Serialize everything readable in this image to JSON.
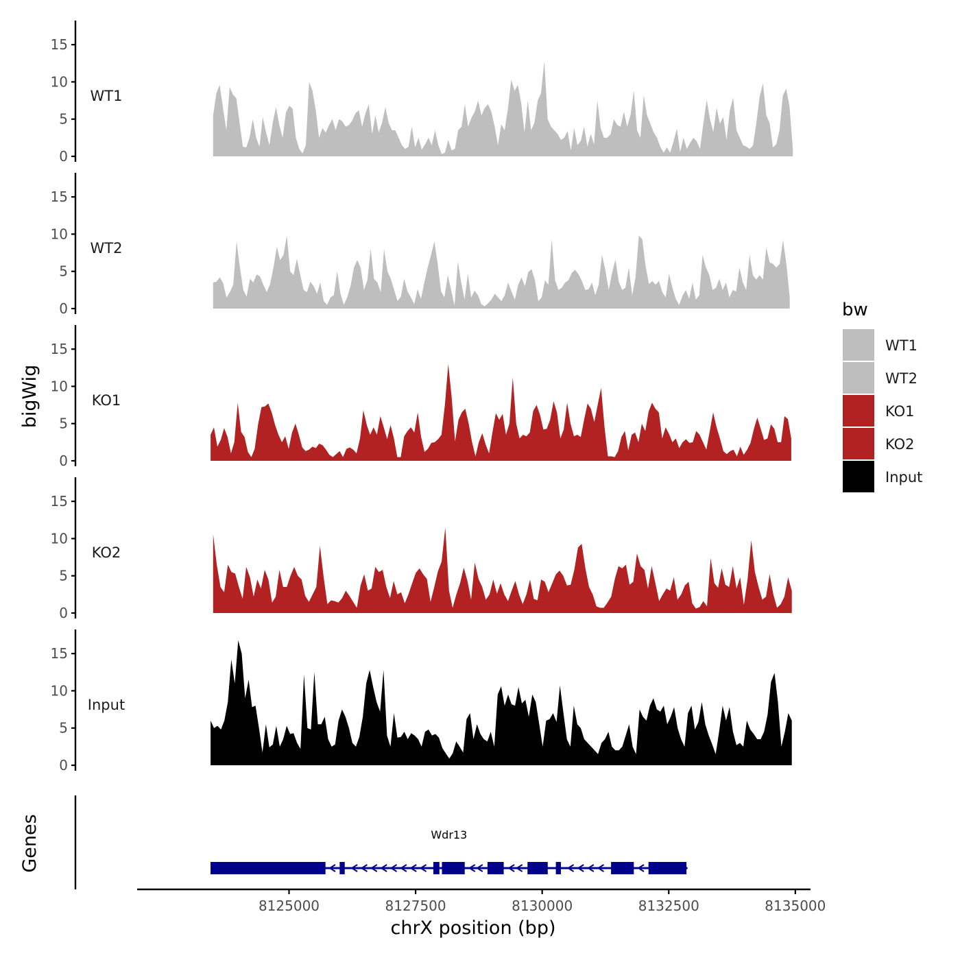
{
  "chart_data": {
    "type": "area",
    "title": "",
    "ylabel": "bigWig",
    "xlabel": "chrX position (bp)",
    "xlim": [
      8122000,
      8135300
    ],
    "x_ticks": [
      8125000,
      8127500,
      8130000,
      8132500,
      8135000
    ],
    "x_tick_labels": [
      "8125000",
      "8127500",
      "8130000",
      "8132500",
      "8135000"
    ],
    "ylim": [
      0,
      17.5
    ],
    "y_ticks": [
      0,
      5,
      10,
      15
    ],
    "y_tick_labels": [
      "0",
      "5",
      "10",
      "15"
    ],
    "genes_label": "Genes",
    "legend": {
      "title": "bw",
      "placement": "right",
      "entries": [
        {
          "name": "WT1",
          "color": "#bebebe"
        },
        {
          "name": "WT2",
          "color": "#bebebe"
        },
        {
          "name": "KO1",
          "color": "#b22222"
        },
        {
          "name": "KO2",
          "color": "#b22222"
        },
        {
          "name": "Input",
          "color": "#000000"
        }
      ]
    },
    "series": [
      {
        "name": "WT1",
        "color": "#bebebe",
        "x_start": 8123500,
        "x_end": 8134950,
        "values": [
          5.5,
          8.5,
          9.6,
          6.5,
          3.5,
          9.3,
          8.3,
          7.8,
          4.5,
          1.3,
          1.2,
          2.5,
          5,
          2.5,
          1.3,
          5.3,
          3.2,
          1.5,
          4.5,
          6.6,
          4.2,
          2.5,
          5.9,
          6.8,
          6.4,
          2.5,
          1,
          0.4,
          1.5,
          10,
          8.8,
          6.2,
          2.5,
          3.8,
          3.2,
          4.2,
          5,
          3.5,
          5,
          4.7,
          4,
          4.2,
          4.8,
          5.8,
          6.2,
          4,
          5.8,
          7,
          3,
          5.5,
          3.2,
          4.5,
          6.6,
          4.5,
          3.5,
          3.5,
          2.5,
          1.5,
          1,
          1.3,
          4,
          1.2,
          2.5,
          0.9,
          1.6,
          2.5,
          1.5,
          3.5,
          1.5,
          0.3,
          0.5,
          2.2,
          0.8,
          1,
          3.5,
          4,
          7,
          4,
          5.2,
          6,
          7.5,
          5.5,
          6.5,
          7,
          6,
          4,
          1.5,
          4.3,
          3.5,
          6.4,
          10.3,
          8.8,
          9.6,
          7.2,
          3.2,
          7.5,
          3.5,
          4.5,
          7.5,
          8.5,
          12.8,
          5,
          4,
          3.5,
          3,
          2.2,
          2.5,
          3.4,
          0.8,
          3.8,
          1.5,
          2.1,
          4,
          1.3,
          3,
          1.6,
          7.5,
          3.8,
          2.5,
          2.5,
          3,
          5,
          4.2,
          4,
          6,
          4,
          5.5,
          8.8,
          3.5,
          2.5,
          8.2,
          5.5,
          4.4,
          3.2,
          2.5,
          1.3,
          0.5,
          1.2,
          0.5,
          2,
          3.7,
          0.6,
          2.5,
          1,
          1.8,
          2.5,
          2,
          1,
          4.4,
          7.6,
          5,
          3.3,
          6.5,
          4.4,
          5.3,
          2.2,
          6.2,
          7.9,
          3.5,
          2.5,
          1.5,
          1.3,
          1,
          1.5,
          4.5,
          8,
          9.8,
          5.5,
          4.5,
          1.2,
          1.6,
          3.5,
          8.2,
          9.1,
          6.8,
          1
        ]
      },
      {
        "name": "WT2",
        "color": "#bebebe",
        "x_start": 8123500,
        "x_end": 8134890,
        "values": [
          3.5,
          3.6,
          4.2,
          3.4,
          1.5,
          2.2,
          3.2,
          9,
          5.5,
          2.5,
          1.6,
          4,
          3.5,
          4.6,
          4.3,
          3.2,
          2.2,
          3.3,
          5.5,
          8.3,
          6.5,
          7.2,
          9.8,
          5,
          4.5,
          6.7,
          4.5,
          2.5,
          2.2,
          3.6,
          3,
          2,
          3.5,
          1,
          0.5,
          1.5,
          1.8,
          5,
          2,
          0.5,
          1.5,
          3,
          5.5,
          6.5,
          5.5,
          2.5,
          3.8,
          8,
          4,
          3.5,
          2.2,
          8,
          5,
          4,
          2.5,
          1,
          1.6,
          4,
          2.3,
          1.5,
          0.6,
          2.6,
          1.3,
          3.5,
          5.5,
          7.2,
          9,
          6,
          2.3,
          1.5,
          4.5,
          2.5,
          0.4,
          6.3,
          3.5,
          1.2,
          4.7,
          1.5,
          2.4,
          1.8,
          0.6,
          0.3,
          0.7,
          1.2,
          2,
          1.5,
          1,
          1.8,
          3.5,
          2.3,
          1.2,
          3.2,
          4.2,
          3,
          4.9,
          5.3,
          3.8,
          1,
          1.5,
          3.8,
          3.2,
          9.3,
          3.8,
          2.5,
          2.8,
          3.5,
          3.8,
          4.8,
          5.2,
          4.6,
          3.7,
          2.5,
          2.6,
          3.5,
          1.8,
          3.2,
          7.2,
          5.2,
          2.5,
          4.8,
          6.6,
          3.6,
          2.5,
          2.8,
          5.5,
          1.8,
          4.2,
          9.8,
          9.3,
          5.7,
          3.3,
          3.7,
          3.2,
          3.7,
          2.2,
          1.5,
          4.7,
          2.8,
          1.3,
          0.5,
          1.7,
          2.5,
          1.3,
          3.5,
          1.2,
          1.8,
          7.2,
          5.5,
          4.5,
          2.5,
          2.8,
          4,
          2.5,
          3.5,
          1.5,
          2.5,
          2.3,
          5.5,
          3.5,
          2.5,
          7.2,
          4.5,
          3.9,
          4.5,
          3.9,
          8.2,
          6.2,
          6,
          5.5,
          6,
          9.2,
          6,
          1.5
        ]
      },
      {
        "name": "KO1",
        "color": "#b22222",
        "x_start": 8123450,
        "x_end": 8134920,
        "values": [
          3.5,
          4.5,
          1.9,
          2.8,
          4.4,
          3.2,
          1,
          2.5,
          7.8,
          3.9,
          3.2,
          1.2,
          0.5,
          1.6,
          4.9,
          7.2,
          7.3,
          7.7,
          6.5,
          4.8,
          3.5,
          2.5,
          3.3,
          1.6,
          3.8,
          5,
          3.5,
          1.8,
          1.3,
          1.5,
          1.9,
          1.7,
          2.3,
          2.1,
          1.5,
          0.8,
          0.5,
          0.9,
          1.3,
          0.5,
          1.6,
          1.8,
          1.5,
          1,
          3,
          6.8,
          4.8,
          3.5,
          4.5,
          3.5,
          6,
          4.5,
          2.9,
          4.8,
          3,
          0.5,
          0.5,
          3.3,
          4,
          4.5,
          3.8,
          6.5,
          3.2,
          1.2,
          1.6,
          2.4,
          2.5,
          2.9,
          3.5,
          7.5,
          13,
          8.5,
          2.6,
          5.5,
          6.5,
          7,
          5,
          2.5,
          0.6,
          2.5,
          3.7,
          2.2,
          1,
          3.8,
          6.4,
          5.5,
          6.3,
          3.5,
          5,
          11.2,
          5,
          3,
          3.5,
          3.3,
          3.8,
          6.7,
          7.5,
          6.2,
          4.2,
          4.3,
          5.5,
          8,
          6.5,
          3,
          4.2,
          7.8,
          5,
          3.3,
          3.5,
          3.2,
          5.5,
          7.7,
          7,
          5.2,
          7.5,
          9.8,
          4.5,
          0.6,
          0.6,
          0.5,
          1.3,
          3.2,
          4,
          1.4,
          3.5,
          3.8,
          2.5,
          5,
          4,
          6.6,
          7.8,
          7,
          6.5,
          3,
          4.5,
          3.6,
          2.5,
          3,
          1.7,
          2.5,
          2.9,
          2.4,
          2.5,
          4,
          3.5,
          2.5,
          1.5,
          4,
          6.5,
          4.5,
          3,
          1.3,
          0.9,
          1.3,
          1.5,
          0.6,
          1.9,
          0.8,
          1.5,
          2.4,
          4.3,
          5.8,
          4.3,
          2.8,
          3,
          4.9,
          4.3,
          2.5,
          2.5,
          6,
          5.6,
          3
        ]
      },
      {
        "name": "KO2",
        "color": "#b22222",
        "x_start": 8123500,
        "x_end": 8134930,
        "values": [
          10.6,
          6.5,
          3.5,
          2.8,
          6.5,
          5.5,
          5.3,
          3.5,
          1.9,
          6.2,
          4.8,
          2.2,
          4.5,
          3.3,
          5.8,
          4.5,
          1.4,
          2.2,
          5.8,
          3.5,
          3.5,
          5,
          6.2,
          5,
          4.5,
          2.3,
          1.5,
          2.5,
          3.5,
          9,
          4.8,
          1.2,
          1.7,
          1.6,
          1.4,
          2,
          3,
          2.3,
          1.5,
          0.7,
          3.7,
          5.2,
          3,
          3.3,
          6.2,
          5.5,
          5.8,
          3.5,
          2,
          4.3,
          2.5,
          2.8,
          1.3,
          2.5,
          4,
          5.4,
          6,
          5.2,
          4.6,
          1.5,
          3.5,
          5.6,
          6.9,
          11.5,
          3,
          0.7,
          2.5,
          4,
          6.1,
          4.3,
          1.8,
          6.8,
          4.6,
          3.5,
          1.8,
          2.5,
          4.5,
          2.6,
          4,
          2.5,
          1.6,
          3,
          4.3,
          2.5,
          1.2,
          2.5,
          4.5,
          1.9,
          1.7,
          4.5,
          4.2,
          2.8,
          4,
          5.2,
          5.7,
          5,
          3.7,
          3.8,
          5.8,
          8.8,
          9.3,
          6,
          3.5,
          2.5,
          0.9,
          0.7,
          0.7,
          1.4,
          2.2,
          4.6,
          6.3,
          6,
          6.5,
          3.8,
          4.2,
          8,
          6.3,
          5.8,
          3.3,
          6.3,
          4,
          1.6,
          2.5,
          3.3,
          3,
          4.8,
          1.8,
          2.5,
          3.7,
          4.2,
          1.3,
          0.6,
          0.8,
          1.6,
          0.9,
          7.4,
          4,
          3.4,
          6,
          3.8,
          3.5,
          6.3,
          3.3,
          4.8,
          1.1,
          4.5,
          9.8,
          5.5,
          3.5,
          1.8,
          2.2,
          5.2,
          2.5,
          0.7,
          1.2,
          2.2,
          4.8,
          3
        ]
      },
      {
        "name": "Input",
        "color": "#000000",
        "x_start": 8123450,
        "x_end": 8134930,
        "values": [
          6,
          5,
          5.3,
          4.8,
          6,
          8.5,
          14.2,
          11,
          16.8,
          15,
          9,
          11.5,
          7.8,
          8,
          5,
          1.7,
          5.5,
          2.4,
          2.8,
          5.3,
          2.5,
          3.5,
          5.3,
          4.2,
          4.3,
          3,
          2.2,
          12.2,
          5,
          4.8,
          12.5,
          5.5,
          5.5,
          6.5,
          3.5,
          2.5,
          2.8,
          6,
          7.5,
          6.5,
          5,
          3,
          2.5,
          3.8,
          6.5,
          11,
          12.8,
          10.5,
          8.5,
          7.2,
          12.8,
          4,
          2.5,
          7,
          3.7,
          3.8,
          4.5,
          3.5,
          4.3,
          4,
          3.5,
          2.5,
          4.5,
          4.8,
          4,
          4.2,
          3.7,
          2.3,
          1.6,
          0.9,
          1.6,
          3.2,
          2.5,
          1.7,
          6.2,
          7,
          3.5,
          5.5,
          4.2,
          3.5,
          3.2,
          4.5,
          2.5,
          9.5,
          10.6,
          8,
          9.5,
          8.2,
          8,
          10.5,
          8.3,
          8.8,
          6.5,
          9.5,
          8.5,
          5.5,
          2.5,
          6,
          6.2,
          7,
          5.8,
          10.7,
          7,
          3.5,
          2.5,
          8,
          5.5,
          5,
          3.5,
          3,
          2.5,
          2,
          1.5,
          3,
          3.5,
          4.5,
          2.5,
          2,
          2,
          2.5,
          4,
          5.5,
          2.5,
          1.5,
          7.5,
          6.5,
          6,
          8,
          9,
          7.5,
          7.2,
          8,
          5.5,
          6.5,
          7.8,
          5,
          3.5,
          2.5,
          7,
          8,
          4.8,
          5.8,
          8.5,
          5.5,
          4,
          2.8,
          1.5,
          4.5,
          8,
          6,
          7.8,
          4.5,
          2.7,
          3,
          2.5,
          6,
          4.8,
          4.2,
          3.5,
          3.5,
          4.5,
          6.8,
          11.2,
          12.4,
          8.5,
          2.5,
          4.5,
          7,
          6
        ]
      }
    ],
    "genes": [
      {
        "name": "Wdr13",
        "strand": "-",
        "color": "#00008b",
        "start": 8123450,
        "end": 8132870,
        "exons": [
          [
            8123450,
            8125720
          ],
          [
            8126000,
            8126100
          ],
          [
            8127850,
            8127970
          ],
          [
            8128020,
            8128470
          ],
          [
            8128920,
            8129240
          ],
          [
            8129710,
            8130110
          ],
          [
            8130270,
            8130370
          ],
          [
            8131360,
            8131810
          ],
          [
            8132100,
            8132850
          ]
        ]
      }
    ]
  }
}
